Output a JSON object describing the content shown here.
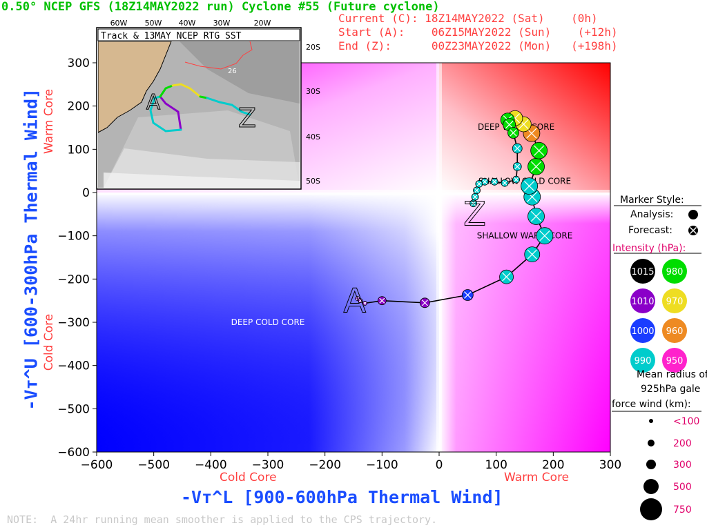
{
  "header": {
    "title": "0.50° NCEP GFS (18Z14MAY2022 run) Cyclone #55 (Future cyclone)",
    "current": "Current (C): 18Z14MAY2022 (Sat)    (0h)",
    "start": "Start (A):    06Z15MAY2022 (Sun)    (+12h)",
    "end": "End (Z):      00Z23MAY2022 (Mon)   (+198h)"
  },
  "inset": {
    "title": "Track & 13MAY NCEP RTG SST",
    "lon_labels": [
      "60W",
      "50W",
      "40W",
      "30W",
      "20W"
    ],
    "lat_labels": [
      "20S",
      "30S",
      "40S",
      "50S"
    ],
    "sst_label": "26",
    "start_marker": "A",
    "end_marker": "Z"
  },
  "note": "NOTE:  A 24hr running mean smoother is applied to the CPS trajectory.",
  "legend": {
    "marker_style": "Marker Style:",
    "analysis": "Analysis:",
    "forecast": "Forecast:",
    "intensity_title": "Intensity (hPa):",
    "intensity": [
      {
        "label": "1015",
        "color": "#000000"
      },
      {
        "label": "980",
        "color": "#00dd00"
      },
      {
        "label": "1010",
        "color": "#8a00c8"
      },
      {
        "label": "970",
        "color": "#eedd22"
      },
      {
        "label": "1000",
        "color": "#1a3cff"
      },
      {
        "label": "960",
        "color": "#ee8a22"
      },
      {
        "label": "990",
        "color": "#00cccc"
      },
      {
        "label": "950",
        "color": "#ff22cc"
      }
    ],
    "radius_title": [
      "Mean radius of",
      "925hPa gale",
      "force wind (km):"
    ],
    "radius": [
      "<100",
      "200",
      "300",
      "500",
      "750"
    ]
  },
  "chart_data": {
    "type": "scatter",
    "xlabel": "-Vт^L [900-600hPa Thermal Wind]",
    "ylabel": "-Vт^U [600-300hPa Thermal Wind]",
    "xlim": [
      -600,
      300
    ],
    "ylim": [
      -600,
      300
    ],
    "xticks": [
      "−600",
      "−500",
      "−400",
      "−300",
      "−200",
      "−100",
      "0",
      "100",
      "200",
      "300"
    ],
    "yticks": [
      "300",
      "200",
      "100",
      "0",
      "−100",
      "−200",
      "−300",
      "−400",
      "−500",
      "−600"
    ],
    "x_side_labels": {
      "left": "Cold Core",
      "right": "Warm Core"
    },
    "y_side_labels": {
      "top": "Warm Core",
      "bottom": "Cold Core"
    },
    "regions": [
      "DEEP COLD CORE",
      "DEEP WARM CORE",
      "SHALLOW WARM CORE",
      "SHALLOW COLD CORE"
    ],
    "start_marker": "A",
    "end_marker": "Z",
    "track": [
      {
        "x": -143,
        "y": -245,
        "p": 1008
      },
      {
        "x": -138,
        "y": -250,
        "p": 1008
      },
      {
        "x": -130,
        "y": -256,
        "p": 1008
      },
      {
        "x": -100,
        "y": -250,
        "p": 1008
      },
      {
        "x": -25,
        "y": -255,
        "p": 1008
      },
      {
        "x": 50,
        "y": -237,
        "p": 1002
      },
      {
        "x": 118,
        "y": -195,
        "p": 990
      },
      {
        "x": 163,
        "y": -143,
        "p": 990
      },
      {
        "x": 185,
        "y": -100,
        "p": 990
      },
      {
        "x": 170,
        "y": -55,
        "p": 990
      },
      {
        "x": 163,
        "y": -10,
        "p": 990
      },
      {
        "x": 158,
        "y": 15,
        "p": 990
      },
      {
        "x": 170,
        "y": 60,
        "p": 982
      },
      {
        "x": 175,
        "y": 97,
        "p": 982
      },
      {
        "x": 162,
        "y": 137,
        "p": 962
      },
      {
        "x": 148,
        "y": 158,
        "p": 968
      },
      {
        "x": 133,
        "y": 172,
        "p": 970
      },
      {
        "x": 120,
        "y": 168,
        "p": 975
      },
      {
        "x": 123,
        "y": 157,
        "p": 983
      },
      {
        "x": 130,
        "y": 138,
        "p": 984
      },
      {
        "x": 137,
        "y": 102,
        "p": 986
      },
      {
        "x": 137,
        "y": 60,
        "p": 987
      },
      {
        "x": 135,
        "y": 30,
        "p": 987
      },
      {
        "x": 115,
        "y": 22,
        "p": 989
      },
      {
        "x": 97,
        "y": 25,
        "p": 990
      },
      {
        "x": 80,
        "y": 25,
        "p": 990
      },
      {
        "x": 70,
        "y": 20,
        "p": 990
      },
      {
        "x": 66,
        "y": 5,
        "p": 990
      },
      {
        "x": 63,
        "y": -10,
        "p": 990
      },
      {
        "x": 60,
        "y": -25,
        "p": 990
      }
    ]
  }
}
